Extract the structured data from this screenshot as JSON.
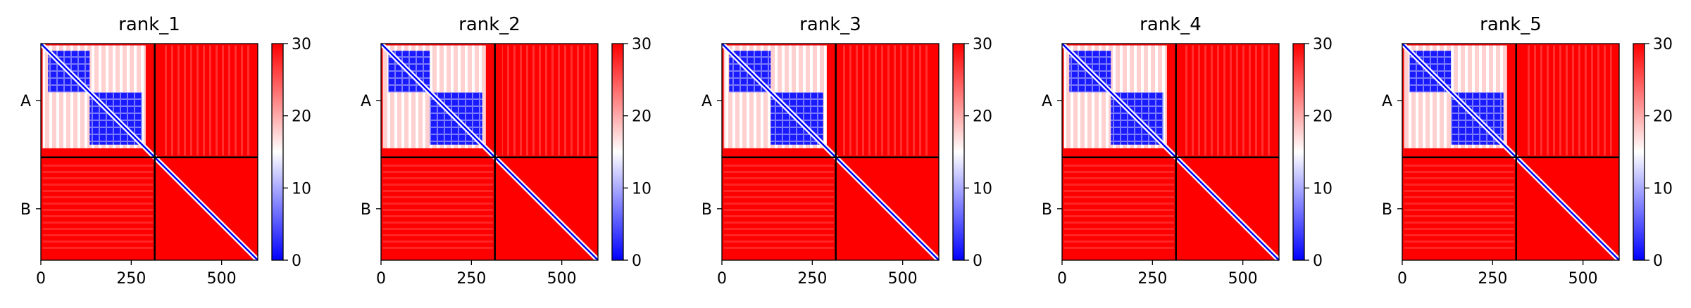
{
  "chart_data": {
    "type": "heatmap",
    "colormap": [
      "#0000ff",
      "#ffffff",
      "#ff0000"
    ],
    "colorbar": {
      "range": [
        0,
        30
      ],
      "ticks": [
        "0",
        "10",
        "20",
        "30"
      ]
    },
    "chain_boundary": 315,
    "sequence_length": 600,
    "xticks": [
      "0",
      "250",
      "500"
    ],
    "chain_labels": [
      "A",
      "B"
    ],
    "panels": [
      {
        "title": "rank_1"
      },
      {
        "title": "rank_2"
      },
      {
        "title": "rank_3"
      },
      {
        "title": "rank_4"
      },
      {
        "title": "rank_5"
      }
    ],
    "domains": [
      [
        20,
        135
      ],
      [
        135,
        280
      ]
    ]
  }
}
